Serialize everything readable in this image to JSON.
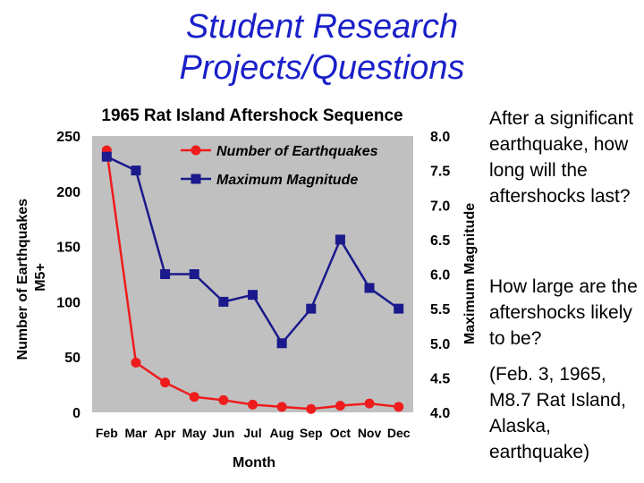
{
  "slide": {
    "title_line1": "Student Research",
    "title_line2": "Projects/Questions",
    "title_color": "#1a20c8"
  },
  "side_text": {
    "question1": "After a significant earthquake, how long will the aftershocks last?",
    "question2": "How large are the aftershocks likely to be?",
    "note": "(Feb. 3, 1965, M8.7 Rat Island, Alaska, earthquake)"
  },
  "chart_data": {
    "type": "line",
    "title": "1965 Rat Island Aftershock Sequence",
    "xlabel": "Month",
    "ylabel": "Number of Earthquakes M5+",
    "y2label": "Maximum Magnitude",
    "categories": [
      "Feb",
      "Mar",
      "Apr",
      "May",
      "Jun",
      "Jul",
      "Aug",
      "Sep",
      "Oct",
      "Nov",
      "Dec"
    ],
    "ylim": [
      0,
      250
    ],
    "yticks": [
      0,
      50,
      100,
      150,
      200,
      250
    ],
    "y2lim": [
      4.0,
      8.0
    ],
    "y2ticks": [
      "4.0",
      "4.5",
      "5.0",
      "5.5",
      "6.0",
      "6.5",
      "7.0",
      "7.5",
      "8.0"
    ],
    "plot_background": "#c0c0c0",
    "series": [
      {
        "name": "Number of Earthquakes",
        "axis": "left",
        "color": "#ee1c1c",
        "marker": "circle",
        "values": [
          237,
          45,
          27,
          14,
          11,
          7,
          5,
          3,
          6,
          8,
          5
        ]
      },
      {
        "name": "Maximum Magnitude",
        "axis": "right",
        "color": "#1a1a8c",
        "marker": "square",
        "values": [
          7.7,
          7.5,
          6.0,
          6.0,
          5.6,
          5.7,
          5.0,
          5.5,
          6.5,
          5.8,
          5.5
        ]
      }
    ],
    "legend_position": "top-right"
  }
}
